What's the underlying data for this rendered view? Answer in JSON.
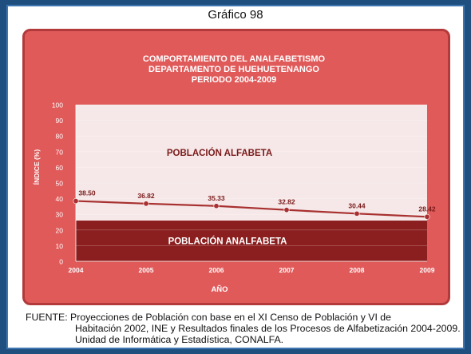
{
  "header": {
    "title": "Gráfico 98"
  },
  "chart_data": {
    "type": "line",
    "title_lines": [
      "COMPORTAMIENTO DEL ANALFABETISMO",
      "DEPARTAMENTO DE HUEHUETENANGO",
      "PERIODO 2004-2009"
    ],
    "xlabel": "AÑO",
    "ylabel": "ÍNDICE (%)",
    "categories": [
      "2004",
      "2005",
      "2006",
      "2007",
      "2008",
      "2009"
    ],
    "values": [
      38.5,
      36.82,
      35.33,
      32.82,
      30.44,
      28.42
    ],
    "value_labels": [
      "38.50",
      "36.82",
      "35.33",
      "32.82",
      "30.44",
      "28.42"
    ],
    "ylim": [
      0,
      100
    ],
    "yticks": [
      0,
      10,
      20,
      30,
      40,
      50,
      60,
      70,
      80,
      90,
      100
    ],
    "band_upper_label": "POBLACIÓN ALFABETA",
    "band_lower_label": "POBLACIÓN ANALFABETA",
    "colors": {
      "panel": "#e05a5a",
      "plot_upper": "#f6e8e8",
      "plot_lower": "#8b1e1e",
      "line": "#a83030",
      "text_dark": "#7a1a1a"
    }
  },
  "footer": {
    "line1": "FUENTE: Proyecciones de Población con base en el XI Censo de Población y VI de",
    "line2": "Habitación 2002, INE y Resultados finales de los Procesos de Alfabetización 2004-2009.",
    "line3": "Unidad de Informática y Estadística, CONALFA."
  }
}
